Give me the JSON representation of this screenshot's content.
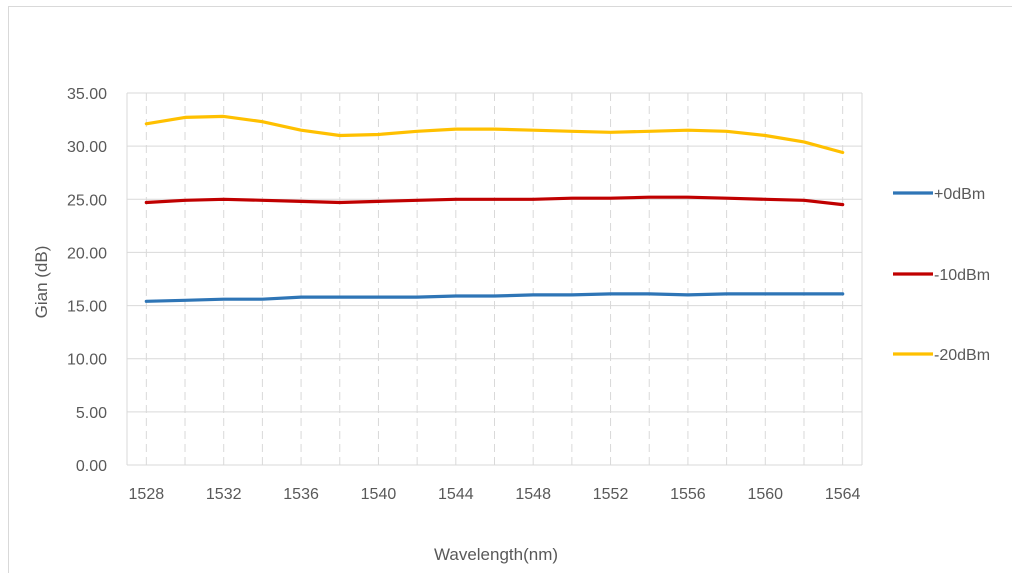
{
  "chart_data": {
    "type": "line",
    "title": "",
    "xlabel": "Wavelength(nm)",
    "ylabel": "Gian (dB)",
    "ylim": [
      0,
      35
    ],
    "yticks": [
      "0.00",
      "5.00",
      "10.00",
      "15.00",
      "20.00",
      "25.00",
      "30.00",
      "35.00"
    ],
    "xlim": [
      1527,
      1565
    ],
    "xticks": [
      1528,
      1532,
      1536,
      1540,
      1544,
      1548,
      1552,
      1556,
      1560,
      1564
    ],
    "grid": true,
    "legend_position": "right",
    "x": [
      1528,
      1530,
      1532,
      1534,
      1536,
      1538,
      1540,
      1542,
      1544,
      1546,
      1548,
      1550,
      1552,
      1554,
      1556,
      1558,
      1560,
      1562,
      1564
    ],
    "series": [
      {
        "name": "+0dBm",
        "color": "#2e75b6",
        "values": [
          15.4,
          15.5,
          15.6,
          15.6,
          15.8,
          15.8,
          15.8,
          15.8,
          15.9,
          15.9,
          16.0,
          16.0,
          16.1,
          16.1,
          16.0,
          16.1,
          16.1,
          16.1,
          16.1
        ]
      },
      {
        "name": "-10dBm",
        "color": "#c00000",
        "values": [
          24.7,
          24.9,
          25.0,
          24.9,
          24.8,
          24.7,
          24.8,
          24.9,
          25.0,
          25.0,
          25.0,
          25.1,
          25.1,
          25.2,
          25.2,
          25.1,
          25.0,
          24.9,
          24.5
        ]
      },
      {
        "name": "-20dBm",
        "color": "#ffc000",
        "values": [
          32.1,
          32.7,
          32.8,
          32.3,
          31.5,
          31.0,
          31.1,
          31.4,
          31.6,
          31.6,
          31.5,
          31.4,
          31.3,
          31.4,
          31.5,
          31.4,
          31.0,
          30.4,
          29.4
        ]
      }
    ]
  }
}
